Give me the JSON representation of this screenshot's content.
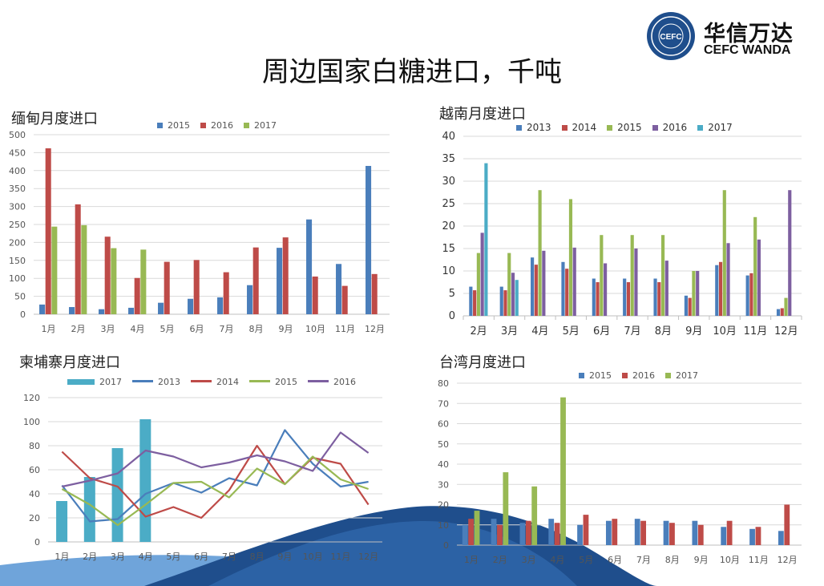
{
  "page": {
    "title": "周边国家白糖进口，千吨",
    "logo_cn": "华信万达",
    "logo_en": "CEFC WANDA",
    "logo_badge_text": "CEFC"
  },
  "colors": {
    "c2013": "#4A7EBB",
    "c2014": "#BE4B48",
    "c2015": "#98B954",
    "c2016": "#7D5FA0",
    "c2017": "#4BACC6",
    "wave_dark": "#1F4E8C",
    "wave_light": "#4A90D9"
  },
  "chart_data": [
    {
      "id": "myanmar",
      "type": "bar",
      "title": "缅甸月度进口",
      "categories": [
        "1月",
        "2月",
        "3月",
        "4月",
        "5月",
        "6月",
        "7月",
        "8月",
        "9月",
        "10月",
        "11月",
        "12月"
      ],
      "ylim": [
        0,
        500
      ],
      "yticks": [
        0,
        50,
        100,
        150,
        200,
        250,
        300,
        350,
        400,
        450,
        500
      ],
      "series": [
        {
          "name": "2015",
          "color": "#4A7EBB",
          "values": [
            27,
            20,
            14,
            18,
            32,
            43,
            47,
            81,
            185,
            264,
            140,
            413
          ]
        },
        {
          "name": "2016",
          "color": "#BE4B48",
          "values": [
            462,
            306,
            216,
            101,
            146,
            151,
            117,
            186,
            214,
            105,
            79,
            112
          ]
        },
        {
          "name": "2017",
          "color": "#98B954",
          "values": [
            244,
            248,
            184,
            180,
            null,
            null,
            null,
            null,
            null,
            null,
            null,
            null
          ]
        }
      ],
      "legend": "top",
      "grid": true
    },
    {
      "id": "vietnam",
      "type": "bar",
      "title": "越南月度进口",
      "categories": [
        "2月",
        "3月",
        "4月",
        "5月",
        "6月",
        "7月",
        "8月",
        "9月",
        "10月",
        "11月",
        "12月"
      ],
      "ylim": [
        0,
        40
      ],
      "yticks": [
        0,
        5,
        10,
        15,
        20,
        25,
        30,
        35,
        40
      ],
      "series": [
        {
          "name": "2013",
          "color": "#4A7EBB",
          "values": [
            6.5,
            6.5,
            13,
            12,
            8.3,
            8.3,
            8.3,
            4.5,
            11.3,
            9,
            1.5
          ]
        },
        {
          "name": "2014",
          "color": "#BE4B48",
          "values": [
            5.7,
            5.7,
            11.4,
            10.5,
            7.5,
            7.5,
            7.5,
            4,
            12,
            9.5,
            1.7
          ]
        },
        {
          "name": "2015",
          "color": "#98B954",
          "values": [
            14,
            14,
            28,
            26,
            18,
            18,
            18,
            10,
            28,
            22,
            4
          ]
        },
        {
          "name": "2016",
          "color": "#7D5FA0",
          "values": [
            18.5,
            9.6,
            14.5,
            15.2,
            11.7,
            15,
            12.3,
            10,
            16.2,
            17,
            28
          ]
        },
        {
          "name": "2017",
          "color": "#4BACC6",
          "values": [
            34,
            8,
            null,
            null,
            null,
            null,
            null,
            null,
            null,
            null,
            null
          ]
        }
      ],
      "legend": "top",
      "grid": true
    },
    {
      "id": "cambodia",
      "type": "bar+line",
      "title": "柬埔寨月度进口",
      "categories": [
        "1月",
        "2月",
        "3月",
        "4月",
        "5月",
        "6月",
        "7月",
        "8月",
        "9月",
        "10月",
        "11月",
        "12月"
      ],
      "ylim": [
        0,
        120
      ],
      "yticks": [
        0,
        20,
        40,
        60,
        80,
        100,
        120
      ],
      "bar_series": [
        {
          "name": "2017",
          "color": "#4BACC6",
          "values": [
            34,
            54,
            78,
            102,
            null,
            null,
            null,
            null,
            null,
            null,
            null,
            null
          ]
        }
      ],
      "line_series": [
        {
          "name": "2013",
          "color": "#4A7EBB",
          "values": [
            47,
            17,
            19,
            40,
            49,
            41,
            53,
            47,
            93,
            65,
            46,
            50
          ]
        },
        {
          "name": "2014",
          "color": "#BE4B48",
          "values": [
            75,
            53,
            46,
            21,
            29,
            20,
            43,
            80,
            48,
            70,
            65,
            31
          ]
        },
        {
          "name": "2015",
          "color": "#98B954",
          "values": [
            44,
            31,
            14,
            31,
            49,
            50,
            37,
            61,
            48,
            71,
            52,
            44
          ]
        },
        {
          "name": "2016",
          "color": "#7D5FA0",
          "values": [
            46,
            51,
            57,
            76,
            71,
            62,
            66,
            72,
            67,
            59,
            91,
            74
          ]
        }
      ],
      "legend": "top",
      "grid": true
    },
    {
      "id": "taiwan",
      "type": "bar",
      "title": "台湾月度进口",
      "categories": [
        "1月",
        "2月",
        "3月",
        "4月",
        "5月",
        "6月",
        "7月",
        "8月",
        "9月",
        "10月",
        "11月",
        "12月"
      ],
      "ylim": [
        0,
        80
      ],
      "yticks": [
        0,
        10,
        20,
        30,
        40,
        50,
        60,
        70,
        80
      ],
      "series": [
        {
          "name": "2015",
          "color": "#4A7EBB",
          "values": [
            10,
            13,
            11,
            13,
            10,
            12,
            13,
            12,
            12,
            9,
            8,
            7
          ]
        },
        {
          "name": "2016",
          "color": "#BE4B48",
          "values": [
            13,
            10,
            12,
            11,
            15,
            13,
            12,
            11,
            10,
            12,
            9,
            20
          ]
        },
        {
          "name": "2017",
          "color": "#98B954",
          "values": [
            17,
            36,
            29,
            73,
            null,
            null,
            null,
            null,
            null,
            null,
            null,
            null
          ]
        }
      ],
      "legend": "top",
      "grid": true
    }
  ]
}
